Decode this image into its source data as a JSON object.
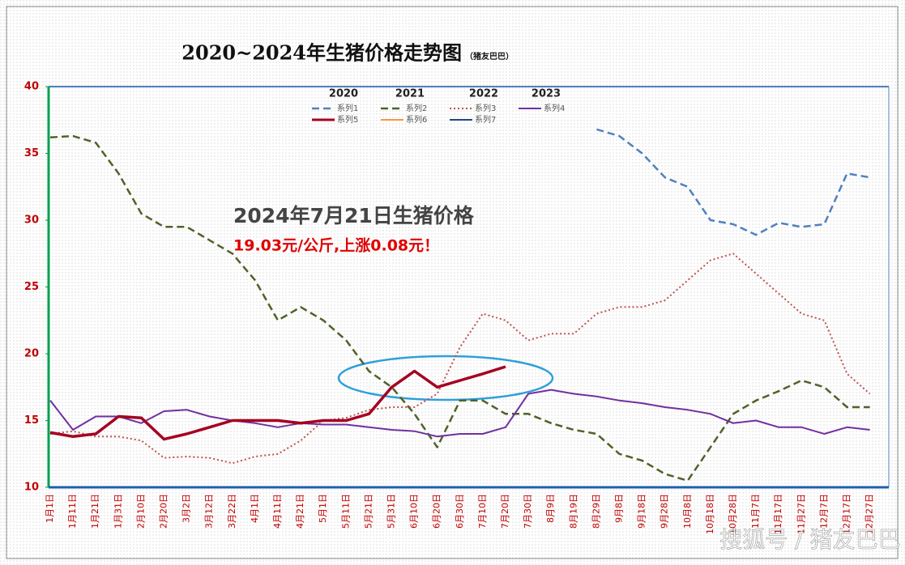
{
  "chart_data": {
    "type": "line",
    "title": "2020~2024年生猪价格走势图",
    "subtitle": "（猪友巴巴）",
    "annotation_title": "2024年7月21日生猪价格",
    "annotation_text": "19.03元/公斤,上涨0.08元！",
    "year_labels": [
      "2020",
      "2021",
      "2022",
      "2023"
    ],
    "watermark": "搜狐号 / 猪友巴巴",
    "ylim": [
      10,
      40
    ],
    "yticks": [
      10,
      15,
      20,
      25,
      30,
      35,
      40
    ],
    "grid": false,
    "categories": [
      "1月1日",
      "1月11日",
      "1月21日",
      "1月31日",
      "2月10日",
      "2月20日",
      "3月2日",
      "3月12日",
      "3月22日",
      "4月1日",
      "4月11日",
      "4月21日",
      "5月1日",
      "5月11日",
      "5月21日",
      "5月31日",
      "6月10日",
      "6月20日",
      "6月30日",
      "7月10日",
      "7月20日",
      "7月30日",
      "8月9日",
      "8月19日",
      "8月29日",
      "9月8日",
      "9月18日",
      "9月28日",
      "10月8日",
      "10月18日",
      "10月28日",
      "11月7日",
      "11月17日",
      "11月27日",
      "12月7日",
      "12月17日",
      "12月27日"
    ],
    "series": [
      {
        "name": "系列1",
        "color": "#4f81bd",
        "dash": "dashed",
        "width": 2.5,
        "values": [
          null,
          null,
          null,
          null,
          null,
          null,
          null,
          null,
          null,
          null,
          null,
          null,
          null,
          null,
          null,
          null,
          null,
          null,
          null,
          null,
          null,
          null,
          null,
          null,
          36.8,
          36.3,
          35,
          33.2,
          32.5,
          30,
          29.7,
          28.9,
          29.8,
          29.5,
          29.7,
          33.5,
          33.2
        ]
      },
      {
        "name": "系列2",
        "color": "#4f6228",
        "dash": "dashed",
        "width": 2.5,
        "values": [
          36.2,
          36.3,
          35.8,
          33.5,
          30.5,
          29.5,
          29.5,
          28.5,
          27.5,
          25.5,
          22.5,
          23.5,
          22.5,
          21,
          18.7,
          17.5,
          15.5,
          13,
          16.5,
          16.5,
          15.5,
          15.5,
          14.8,
          14.3,
          14,
          12.5,
          12,
          11,
          10.5,
          13,
          15.5,
          16.5,
          17.2,
          18,
          17.5,
          16,
          16
        ]
      },
      {
        "name": "系列3",
        "color": "#c0504d",
        "dash": "dotted",
        "width": 2,
        "values": [
          14,
          14.2,
          13.8,
          13.8,
          13.5,
          12.2,
          12.3,
          12.2,
          11.8,
          12.3,
          12.5,
          13.5,
          15,
          15.2,
          15.8,
          16,
          16,
          17,
          20.5,
          23,
          22.5,
          21,
          21.5,
          21.5,
          23,
          23.5,
          23.5,
          24,
          25.5,
          27,
          27.5,
          26,
          24.5,
          23,
          22.5,
          18.5,
          17
        ]
      },
      {
        "name": "系列4",
        "color": "#7030a0",
        "dash": "solid",
        "width": 2,
        "values": [
          16.5,
          14.3,
          15.3,
          15.3,
          14.8,
          15.7,
          15.8,
          15.3,
          15,
          14.8,
          14.5,
          14.8,
          14.7,
          14.7,
          14.5,
          14.3,
          14.2,
          13.8,
          14,
          14,
          14.5,
          17,
          17.3,
          17,
          16.8,
          16.5,
          16.3,
          16,
          15.8,
          15.5,
          14.8,
          15,
          14.5,
          14.5,
          14,
          14.5,
          14.3
        ]
      },
      {
        "name": "系列5",
        "color": "#a50021",
        "dash": "solid",
        "width": 3.5,
        "values": [
          14.1,
          13.8,
          14,
          15.3,
          15.2,
          13.6,
          14,
          14.5,
          15,
          15,
          15,
          14.8,
          15,
          15,
          15.5,
          17.5,
          18.7,
          17.5,
          18,
          18.5,
          19.03,
          null,
          null,
          null,
          null,
          null,
          null,
          null,
          null,
          null,
          null,
          null,
          null,
          null,
          null,
          null,
          null
        ]
      },
      {
        "name": "系列6",
        "color": "#f79646",
        "dash": "solid",
        "width": 2,
        "values": [
          null,
          null,
          null,
          null,
          null,
          null,
          null,
          null,
          null,
          null,
          null,
          null,
          null,
          null,
          null,
          null,
          null,
          null,
          null,
          null,
          null,
          null,
          null,
          null,
          null,
          null,
          null,
          null,
          null,
          null,
          null,
          null,
          null,
          null,
          null,
          null,
          null
        ]
      },
      {
        "name": "系列7",
        "color": "#1f497d",
        "dash": "solid",
        "width": 2,
        "values": [
          null,
          null,
          null,
          null,
          null,
          null,
          null,
          null,
          null,
          null,
          null,
          null,
          null,
          null,
          null,
          null,
          null,
          null,
          null,
          null,
          null,
          null,
          null,
          null,
          null,
          null,
          null,
          null,
          null,
          null,
          null,
          null,
          null,
          null,
          null,
          null,
          null
        ]
      }
    ]
  }
}
